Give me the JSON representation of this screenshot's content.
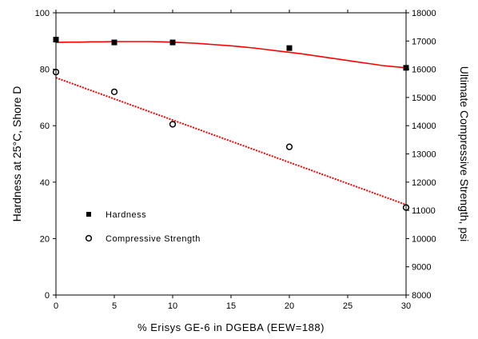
{
  "chart_data": {
    "type": "scatter",
    "xlabel": "% Erisys GE-6 in DGEBA (EEW=188)",
    "ylabel_left": "Hardness at 25°C, Shore D",
    "ylabel_right": "Ultimate Compressive Strength, psi",
    "x_ticks": [
      0,
      5,
      10,
      15,
      20,
      25,
      30
    ],
    "y_left_ticks": [
      0,
      20,
      40,
      60,
      80,
      100
    ],
    "y_right_ticks": [
      8000,
      9000,
      10000,
      11000,
      12000,
      13000,
      14000,
      15000,
      16000,
      17000,
      18000
    ],
    "x_tick_labels": [
      "0",
      "5",
      "10",
      "15",
      "20",
      "25",
      "30"
    ],
    "y_left_tick_labels": [
      "0",
      "20",
      "40",
      "60",
      "80",
      "100"
    ],
    "y_right_tick_labels": [
      "8000",
      "9000",
      "10000",
      "11000",
      "12000",
      "13000",
      "14000",
      "15000",
      "16000",
      "17000",
      "18000"
    ],
    "xlim": [
      0,
      30
    ],
    "ylim_left": [
      0,
      100
    ],
    "ylim_right": [
      8000,
      18000
    ],
    "grid": false,
    "legend_position": "lower-left",
    "series": [
      {
        "name": "Hardness",
        "axis": "left",
        "marker": "filled-square",
        "color": "#000000",
        "x": [
          0,
          5,
          10,
          20,
          30
        ],
        "y": [
          90.5,
          89.5,
          89.5,
          87.5,
          80.5
        ]
      },
      {
        "name": "Compressive Strength",
        "axis": "right",
        "marker": "open-circle",
        "color": "#000000",
        "x": [
          0,
          5,
          10,
          20,
          30
        ],
        "y": [
          15900,
          15200,
          14050,
          13250,
          11100
        ]
      }
    ],
    "fit_lines": [
      {
        "axis": "left",
        "color": "#ff0000",
        "style": "solid",
        "x": [
          0,
          1,
          2,
          3,
          4,
          5,
          6,
          7,
          8,
          9,
          10,
          11,
          12,
          13,
          14,
          15,
          16,
          17,
          18,
          19,
          20,
          21,
          22,
          23,
          24,
          25,
          26,
          27,
          28,
          29,
          30
        ],
        "y": [
          89.5,
          89.6,
          89.6,
          89.7,
          89.7,
          89.8,
          89.8,
          89.8,
          89.8,
          89.7,
          89.6,
          89.4,
          89.2,
          88.9,
          88.6,
          88.3,
          87.9,
          87.5,
          87.0,
          86.5,
          86.0,
          85.5,
          84.9,
          84.3,
          83.7,
          83.1,
          82.5,
          81.9,
          81.3,
          80.9,
          80.5
        ]
      },
      {
        "axis": "right",
        "color": "#ff0000",
        "style": "dotted",
        "x": [
          0,
          30
        ],
        "y": [
          15700,
          11200
        ]
      }
    ]
  }
}
